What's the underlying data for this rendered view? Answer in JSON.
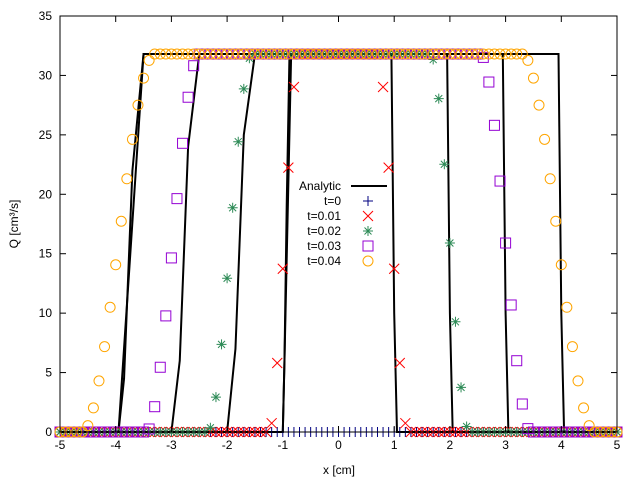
{
  "chart_data": {
    "type": "line",
    "xlabel": "x [cm]",
    "ylabel": "Q [cm³/s]",
    "xlim": [
      -5,
      5
    ],
    "ylim": [
      0,
      35
    ],
    "xticks": [
      "-5",
      "-4",
      "-3",
      "-2",
      "-1",
      "0",
      "1",
      "2",
      "3",
      "4",
      "5"
    ],
    "yticks": [
      "0",
      "5",
      "10",
      "15",
      "20",
      "25",
      "30",
      "35"
    ],
    "grid": false,
    "legend_position": "center",
    "colors": {
      "analytic": "#000000",
      "t0": "#000080",
      "t001": "#ff0000",
      "t002": "#2e8b57",
      "t003": "#9400d3",
      "t004": "#ffa500"
    },
    "series": [
      {
        "name": "Analytic",
        "kind": "line",
        "segments": [
          {
            "x": [
              -5.0,
              -3.95,
              -3.85,
              -3.7,
              -3.5,
              -3.5,
              -0.88,
              -0.93,
              -0.97,
              -1.0,
              -5.0
            ],
            "y": [
              0.0,
              0.0,
              4.5,
              22.0,
              31.8,
              31.8,
              31.8,
              19.0,
              6.0,
              0.0,
              0.0
            ],
            "note": "t=0 pulse"
          },
          {
            "x": [
              -5.0,
              -3.0,
              -2.85,
              -2.7,
              -2.5,
              0.95,
              1.0,
              1.05,
              5.0
            ],
            "y": [
              0.0,
              0.0,
              6.0,
              24.0,
              31.8,
              31.8,
              10.0,
              0.0,
              0.0
            ]
          },
          {
            "x": [
              -2.0,
              -1.85,
              -1.7,
              -1.5,
              1.95,
              2.0,
              2.05
            ],
            "y": [
              0.0,
              7.0,
              25.0,
              31.8,
              31.8,
              10.0,
              0.0
            ]
          },
          {
            "x": [
              -1.0,
              -0.97,
              -0.9,
              -0.85,
              2.95,
              3.0,
              3.05
            ],
            "y": [
              0.0,
              6.0,
              21.0,
              31.8,
              31.8,
              10.0,
              0.0
            ]
          },
          {
            "x": [
              -3.95,
              -3.5,
              3.95,
              4.0,
              4.05
            ],
            "y": [
              0.0,
              31.8,
              31.8,
              10.0,
              0.0
            ]
          }
        ]
      },
      {
        "name": "t=0",
        "kind": "plus",
        "x_start": -5.0,
        "x_end": 5.0,
        "step": 0.1,
        "profile": {
          "rise": [
            -1.0,
            -0.9
          ],
          "fall": [
            0.95,
            1.05
          ],
          "peak": 0.0
        }
      },
      {
        "name": "t=0.01",
        "kind": "cross",
        "x_start": -5.0,
        "x_end": 5.0,
        "step": 0.1,
        "profile": {
          "rise": [
            -1.25,
            -0.7
          ],
          "fall": [
            0.7,
            1.25
          ],
          "peak": 31.8
        }
      },
      {
        "name": "t=0.02",
        "kind": "star",
        "x_start": -5.0,
        "x_end": 5.0,
        "step": 0.1,
        "profile": {
          "rise": [
            -2.35,
            -1.55
          ],
          "fall": [
            1.65,
            2.35
          ],
          "peak": 31.8
        }
      },
      {
        "name": "t=0.03",
        "kind": "square",
        "x_start": -5.0,
        "x_end": 5.0,
        "step": 0.1,
        "profile": {
          "rise": [
            -3.45,
            -2.5
          ],
          "fall": [
            2.55,
            3.45
          ],
          "peak": 31.8
        }
      },
      {
        "name": "t=0.04",
        "kind": "circle",
        "x_start": -5.0,
        "x_end": 5.0,
        "step": 0.1,
        "profile": {
          "rise": [
            -4.6,
            -3.3
          ],
          "fall": [
            3.3,
            4.6
          ],
          "peak": 31.8
        }
      }
    ]
  }
}
